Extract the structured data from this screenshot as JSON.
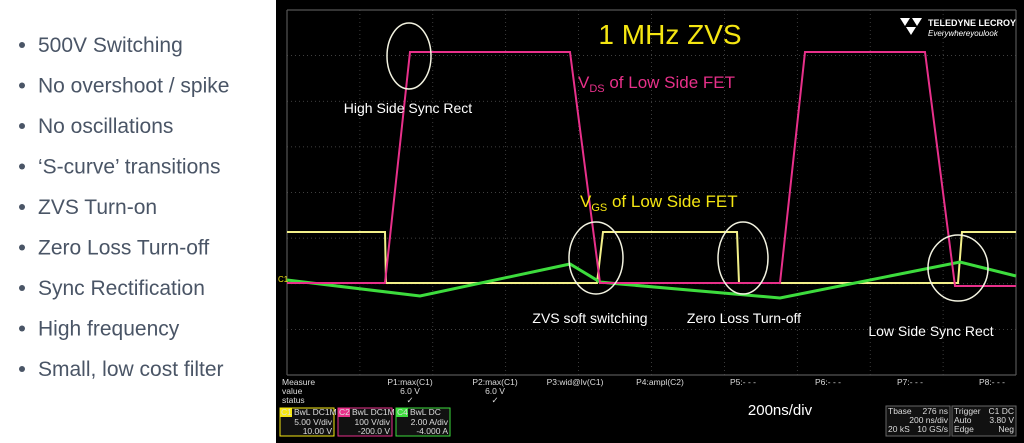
{
  "bullets": [
    "500V Switching",
    "No overshoot / spike",
    "No oscillations",
    "‘S-curve’ transitions",
    "ZVS Turn-on",
    "Zero Loss Turn-off",
    "Sync Rectification",
    "High frequency",
    "Small, low cost filter"
  ],
  "scope": {
    "title": "1 MHz ZVS",
    "brand": "TELEDYNE LECROY",
    "tagline": "Everywhereyoulook",
    "vds_label": {
      "main": "V",
      "sub": "DS",
      "rest": " of Low Side FET"
    },
    "vgs_label": {
      "main": "V",
      "sub": "GS",
      "rest": " of Low Side FET"
    },
    "annotations": [
      "High Side Sync Rect",
      "ZVS soft switching",
      "Zero Loss Turn-off",
      "Low Side Sync Rect"
    ],
    "channel_marker": "C1",
    "measure": {
      "header": [
        "Measure",
        "value",
        "status"
      ],
      "params": [
        {
          "name": "P1:max(C1)",
          "value": "6.0 V",
          "status": "✓"
        },
        {
          "name": "P2:max(C1)",
          "value": "6.0 V",
          "status": "✓"
        },
        {
          "name": "P3:wid@lv(C1)"
        },
        {
          "name": "P4:ampl(C2)"
        },
        {
          "name": "P5:- - -"
        },
        {
          "name": "P6:- - -"
        },
        {
          "name": "P7:- - -"
        },
        {
          "name": "P8:- - -"
        }
      ]
    },
    "timebase_label": "200ns/div",
    "channels": [
      {
        "id": "C1",
        "coupling": "BwL DC1M",
        "scale": "5.00 V/div",
        "offset": "10.00 V"
      },
      {
        "id": "C2",
        "coupling": "BwL DC1M",
        "scale": "100 V/div",
        "offset": "-200.0 V"
      },
      {
        "id": "C4",
        "coupling": "BwL DC",
        "scale": "2.00 A/div",
        "offset": "-4.000 A"
      }
    ],
    "tbase": {
      "rows": [
        [
          "Tbase",
          "276 ns"
        ],
        [
          "",
          "200 ns/div"
        ],
        [
          "20 kS",
          "10 GS/s"
        ]
      ]
    },
    "trigger": {
      "rows": [
        [
          "Trigger",
          "C1 DC"
        ],
        [
          "Auto",
          "3.80 V"
        ],
        [
          "Edge",
          "Neg"
        ]
      ]
    }
  }
}
